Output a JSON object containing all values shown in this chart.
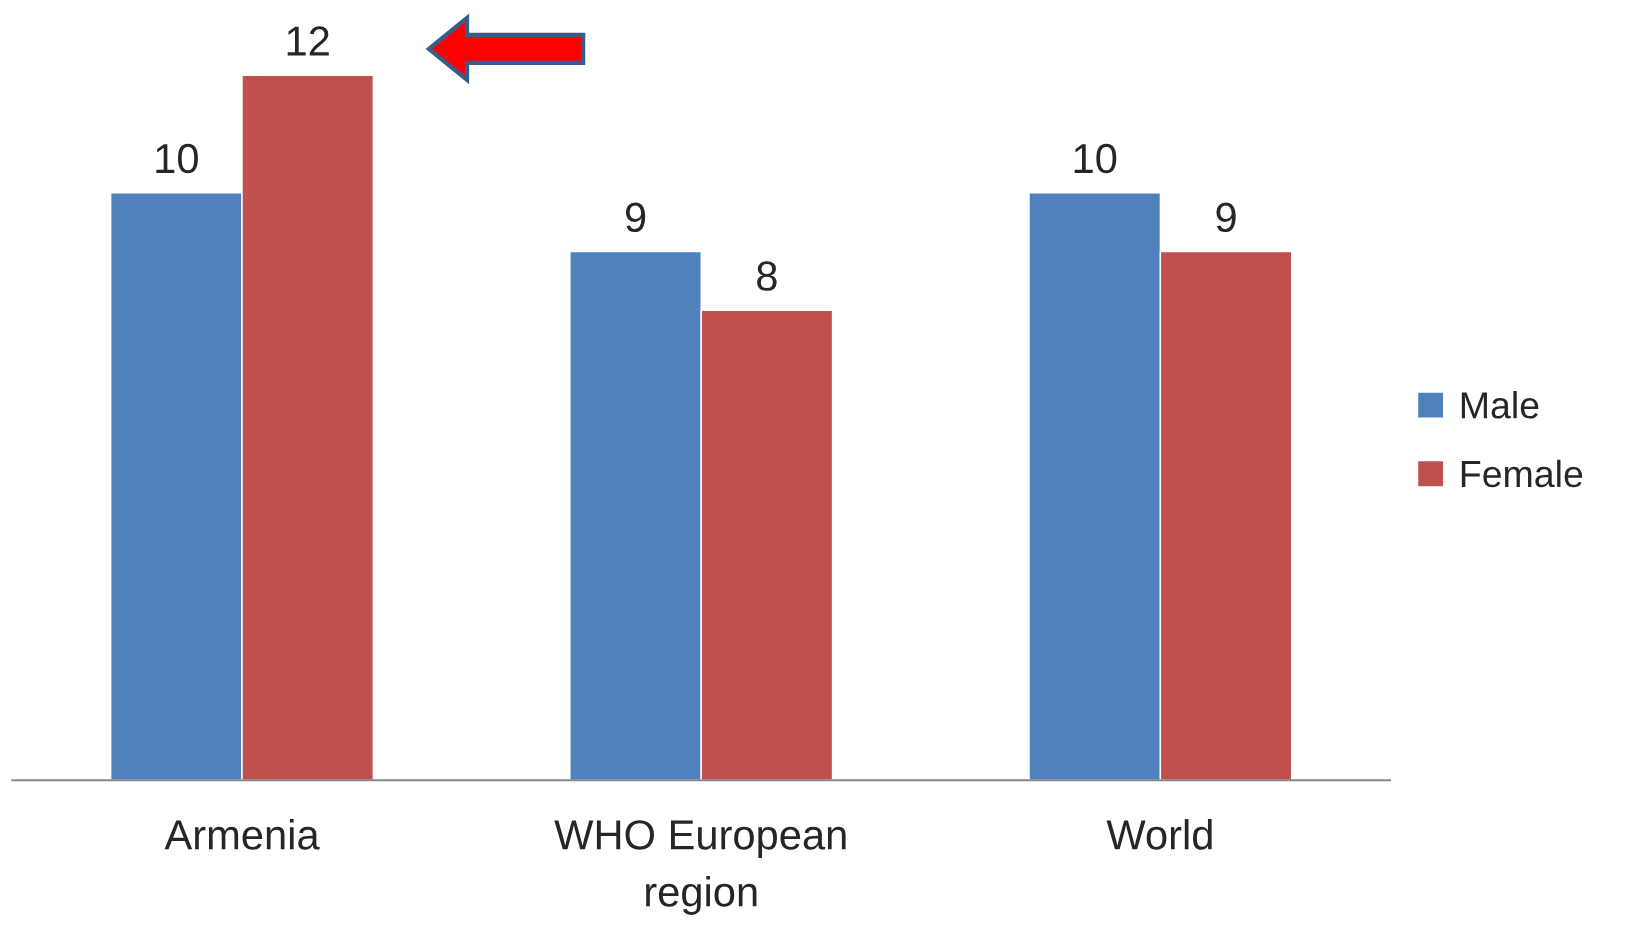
{
  "chart_data": {
    "type": "bar",
    "categories": [
      "Armenia",
      "WHO European\nregion",
      "World"
    ],
    "series": [
      {
        "name": "Male",
        "color": "#4f81bd",
        "values": [
          10,
          9,
          10
        ]
      },
      {
        "name": "Female",
        "color": "#c0504d",
        "values": [
          12,
          8,
          9
        ]
      }
    ],
    "data_labels": true,
    "legend": "right",
    "grid": false
  }
}
